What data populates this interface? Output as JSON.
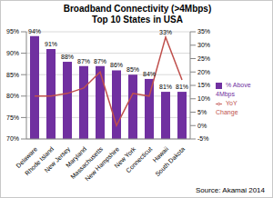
{
  "chart_data": {
    "type": "bar",
    "title": "Broadband Connectivity (>4Mbps)",
    "subtitle": "Top 10 States in USA",
    "source": "Source: Akamai 2014",
    "categories": [
      "Delaware",
      "Rhode Island",
      "New Jersey",
      "Maryland",
      "Massachusetts",
      "New Hampshire",
      "New York",
      "Connecticut",
      "Hawaii",
      "South Dakota"
    ],
    "series": [
      {
        "name": "% Above 4Mbps",
        "type": "bar",
        "color": "#7030a0",
        "values": [
          94,
          91,
          88,
          87,
          87,
          86,
          85,
          84,
          81,
          81
        ],
        "value_labels": [
          "94%",
          "91%",
          "88%",
          "87%",
          "87%",
          "86%",
          "85%",
          "84%",
          "81%",
          "81%"
        ]
      },
      {
        "name": "YoY Change",
        "type": "line",
        "axis": "y2",
        "color": "#c0504d",
        "marker": "none",
        "line_style": "solid",
        "values": [
          11,
          11,
          12,
          14,
          20,
          0,
          12,
          11,
          33,
          17
        ],
        "value_labels": [
          null,
          null,
          null,
          null,
          null,
          null,
          null,
          null,
          "33%",
          null
        ]
      }
    ],
    "ylim": [
      70,
      95
    ],
    "yticks": [
      {
        "value": 70,
        "label": "70%"
      },
      {
        "value": 75,
        "label": "75%"
      },
      {
        "value": 80,
        "label": "80%"
      },
      {
        "value": 85,
        "label": "85%"
      },
      {
        "value": 90,
        "label": "90%"
      },
      {
        "value": 95,
        "label": "95%"
      }
    ],
    "y2lim": [
      -5,
      35
    ],
    "y2ticks": [
      {
        "value": -5,
        "label": "-5%"
      },
      {
        "value": 0,
        "label": "0%"
      },
      {
        "value": 5,
        "label": "5%"
      },
      {
        "value": 10,
        "label": "10%"
      },
      {
        "value": 15,
        "label": "15%"
      },
      {
        "value": 20,
        "label": "20%"
      },
      {
        "value": 25,
        "label": "25%"
      },
      {
        "value": 30,
        "label": "30%"
      },
      {
        "value": 35,
        "label": "35%"
      }
    ],
    "grid": true,
    "legend": "right",
    "data_labels": true
  }
}
